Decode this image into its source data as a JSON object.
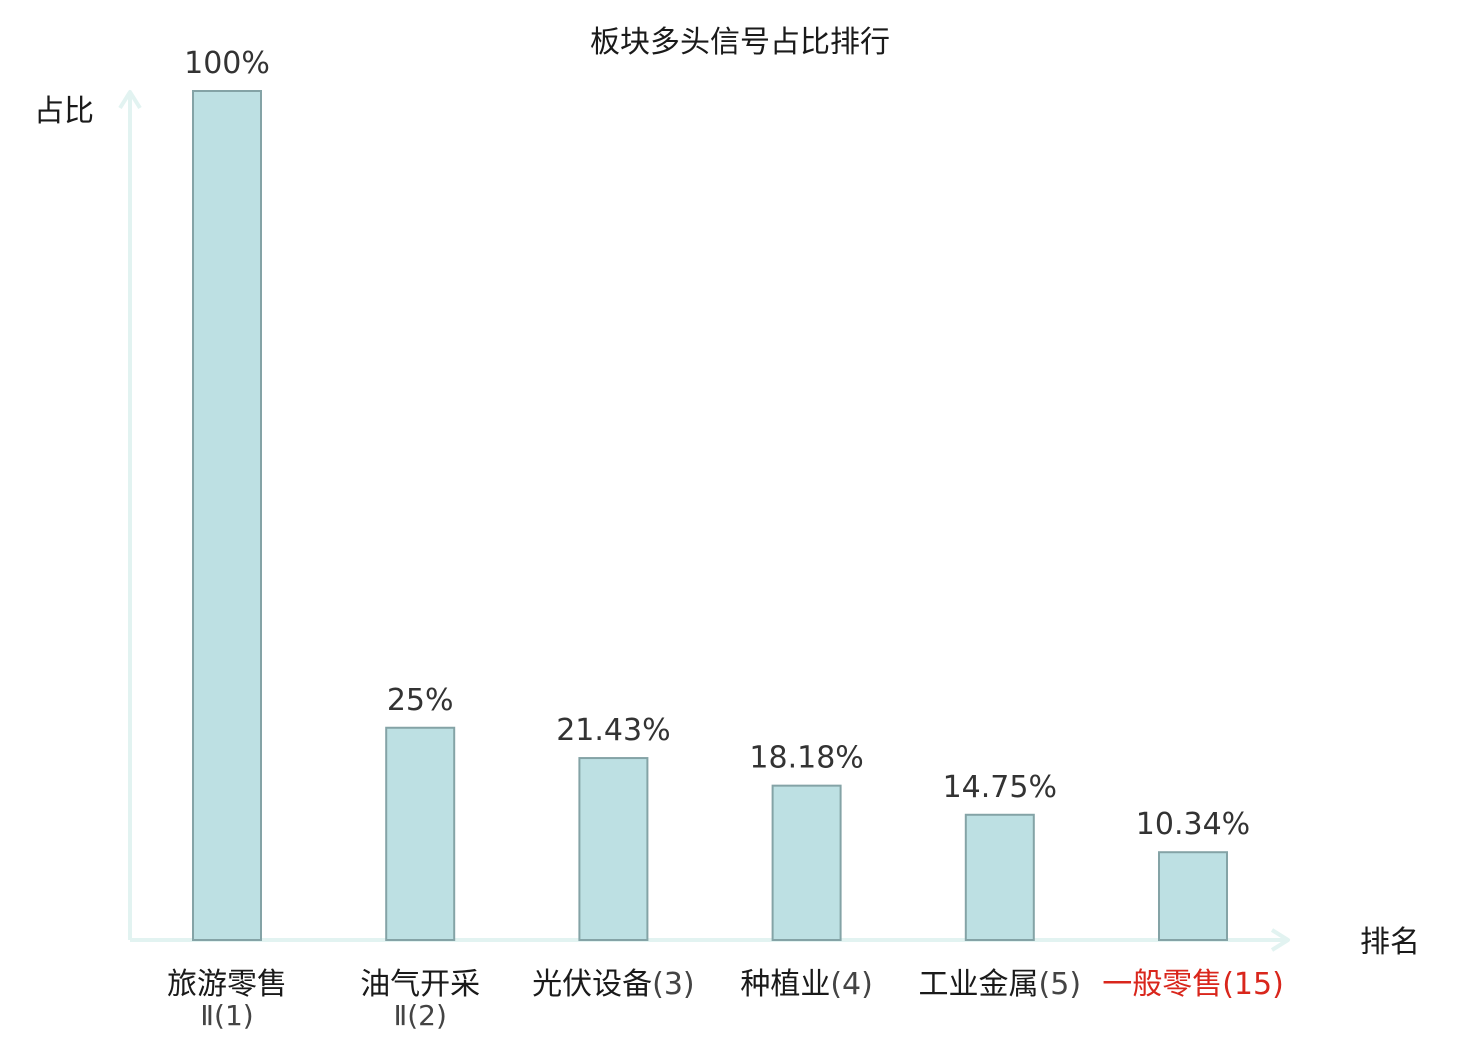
{
  "chart_data": {
    "type": "bar",
    "title": "板块多头信号占比排行",
    "ylabel": "占比",
    "xlabel": "排名",
    "ylim": [
      0,
      100
    ],
    "categories": [
      {
        "name": "旅游零售",
        "rank_line1": "",
        "rank_line2": "Ⅱ(1)",
        "highlight": false
      },
      {
        "name": "油气开采",
        "rank_line1": "",
        "rank_line2": "Ⅱ(2)",
        "highlight": false
      },
      {
        "name": "光伏设备",
        "rank_line1": "(3)",
        "rank_line2": "",
        "highlight": false
      },
      {
        "name": "种植业",
        "rank_line1": "(4)",
        "rank_line2": "",
        "highlight": false
      },
      {
        "name": "工业金属",
        "rank_line1": "(5)",
        "rank_line2": "",
        "highlight": false
      },
      {
        "name": "一般零售",
        "rank_line1": "(15)",
        "rank_line2": "",
        "highlight": true
      }
    ],
    "values": [
      100,
      25,
      21.43,
      18.18,
      14.75,
      10.34
    ],
    "value_labels": [
      "100%",
      "25%",
      "21.43%",
      "18.18%",
      "14.75%",
      "10.34%"
    ],
    "grid": false,
    "legend": "none",
    "colors": {
      "bar_fill": "#bde0e3",
      "bar_stroke": "#84a3a6",
      "axis": "#e2f3f1",
      "highlight_text": "#d9261c"
    }
  }
}
